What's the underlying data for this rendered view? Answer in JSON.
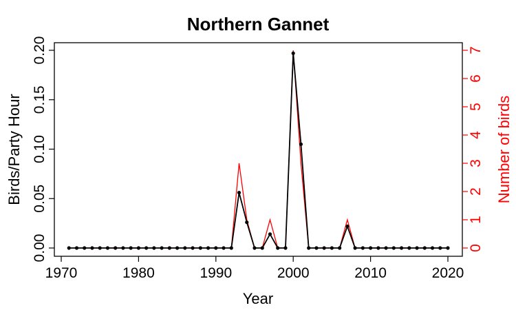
{
  "chart_data": {
    "type": "line",
    "title": "Northern Gannet",
    "xlabel": "Year",
    "ylabel": "Birds/Party Hour",
    "ylabel_right": "Number of birds",
    "xlim": [
      1970,
      2020
    ],
    "ylim": [
      0,
      0.2
    ],
    "ylim_right": [
      0,
      7
    ],
    "xticks": [
      "1970",
      "1980",
      "1990",
      "2000",
      "2010",
      "2020"
    ],
    "yticks": [
      "0.00",
      "0.05",
      "0.10",
      "0.15",
      "0.20"
    ],
    "yticks_right": [
      "0",
      "1",
      "2",
      "3",
      "4",
      "5",
      "6",
      "7"
    ],
    "grid": false,
    "colors": {
      "left_series": "#000000",
      "right_series": "#ff0000"
    },
    "x": [
      1971,
      1972,
      1973,
      1974,
      1975,
      1976,
      1977,
      1978,
      1979,
      1980,
      1981,
      1982,
      1983,
      1984,
      1985,
      1986,
      1987,
      1988,
      1989,
      1990,
      1991,
      1992,
      1993,
      1994,
      1995,
      1996,
      1997,
      1998,
      1999,
      2000,
      2001,
      2002,
      2003,
      2004,
      2005,
      2006,
      2007,
      2008,
      2009,
      2010,
      2011,
      2012,
      2013,
      2014,
      2015,
      2016,
      2017,
      2018,
      2019,
      2020
    ],
    "series": [
      {
        "axis": "left",
        "values": [
          0,
          0,
          0,
          0,
          0,
          0,
          0,
          0,
          0,
          0,
          0,
          0,
          0,
          0,
          0,
          0,
          0,
          0,
          0,
          0,
          0,
          0,
          0.056,
          0.026,
          0,
          0,
          0.014,
          0,
          0,
          0.197,
          0.105,
          0,
          0,
          0,
          0,
          0,
          0.022,
          0,
          0,
          0,
          0,
          0,
          0,
          0,
          0,
          0,
          0,
          0,
          0,
          0
        ]
      },
      {
        "axis": "right",
        "values": [
          0,
          0,
          0,
          0,
          0,
          0,
          0,
          0,
          0,
          0,
          0,
          0,
          0,
          0,
          0,
          0,
          0,
          0,
          0,
          0,
          0,
          0,
          3,
          1,
          0,
          0,
          1,
          0,
          0,
          7,
          3,
          0,
          0,
          0,
          0,
          0,
          1,
          0,
          0,
          0,
          0,
          0,
          0,
          0,
          0,
          0,
          0,
          0,
          0,
          0
        ]
      }
    ]
  }
}
